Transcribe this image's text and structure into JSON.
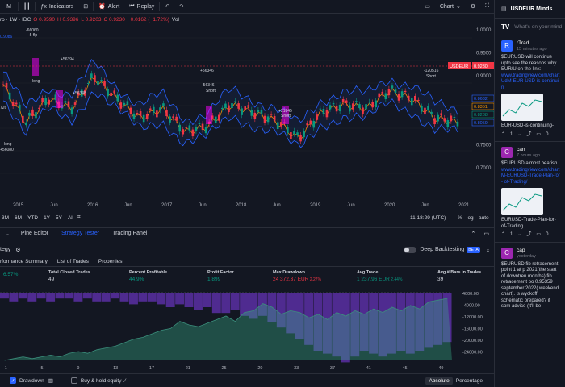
{
  "toolbar": {
    "interval_label": "M",
    "indicators_label": "Indicators",
    "alert_label": "Alert",
    "replay_label": "Replay",
    "chart_label": "Chart"
  },
  "legend": {
    "symbol": "ro · 1W · IDC",
    "open": "O 0.9590",
    "high": "H 0.9396",
    "low": "L 0.9203",
    "close": "C 0.9230",
    "change": "−0.0162 (−1.72%)",
    "vol": "Vol"
  },
  "price_axis": {
    "ticks": [
      "1.0000",
      "0.9500",
      "0.9000",
      "0.8500",
      "0.8000",
      "0.7500",
      "0.7000"
    ],
    "symbol_tag": "USDEUR",
    "last_price": "0.9230",
    "bb_labels": [
      "0.8632",
      "0.8351",
      "0.8288",
      "0.8059"
    ]
  },
  "annotations": {
    "top_left": "0.9086",
    "a1": "-66060",
    "a2": "-5 flp",
    "a3": "+56394",
    "a4": "+56346",
    "a5": "+56348",
    "a6": "-56346",
    "a7": "Short",
    "a8": "+21645",
    "a9": "Short",
    "a10": "-120516",
    "a11": "Short",
    "a12": "+120516",
    "a13": "long",
    "a14": "+56080",
    "a15": "long",
    "a16": "726"
  },
  "time_axis": {
    "labels": [
      "2015",
      "Jun",
      "2016",
      "Jun",
      "2017",
      "Jun",
      "2018",
      "Jun",
      "2019",
      "Jun",
      "2020",
      "Jun",
      "2021"
    ],
    "clock": "11:18:29 (UTC)",
    "pct": "%",
    "log": "log",
    "auto": "auto"
  },
  "ranges": [
    "3M",
    "6M",
    "YTD",
    "1Y",
    "5Y",
    "All"
  ],
  "bottom_tabs": {
    "pine": "Pine Editor",
    "tester": "Strategy Tester",
    "panel": "Trading Panel"
  },
  "strategy": {
    "label": "tegy",
    "deep": "Deep Backtesting",
    "beta": "BETA"
  },
  "report_tabs": [
    "rformance Summary",
    "List of Trades",
    "Properties"
  ],
  "stats": [
    {
      "label": "",
      "value": "6.57%",
      "color": "#089981"
    },
    {
      "label": "Total Closed Trades",
      "value": "49",
      "color": "#d1d4dc"
    },
    {
      "label": "Percent Profitable",
      "value": "44.9%",
      "color": "#089981"
    },
    {
      "label": "Profit Factor",
      "value": "1.899",
      "color": "#089981"
    },
    {
      "label": "Max Drawdown",
      "value": "24 372.37 EUR",
      "extra": "2.27%",
      "color": "#f23645"
    },
    {
      "label": "Avg Trade",
      "value": "1 237.96 EUR",
      "extra": "2.44%",
      "color": "#089981"
    },
    {
      "label": "Avg # Bars in Trades",
      "value": "39",
      "color": "#d1d4dc"
    }
  ],
  "equity_axis": [
    "4000.00",
    "-4000.00",
    "-12000.00",
    "-16000.00",
    "-20000.00",
    "-24000.00"
  ],
  "equity_x": [
    "1",
    "5",
    "9",
    "13",
    "17",
    "21",
    "25",
    "29",
    "33",
    "37",
    "41",
    "45",
    "49"
  ],
  "chart_data": {
    "type": "area",
    "equity": [
      0,
      1,
      2,
      1,
      2,
      3,
      2,
      4,
      5,
      4,
      6,
      7,
      8,
      10,
      12,
      13,
      15,
      17,
      18,
      22,
      20,
      19,
      21,
      23,
      25,
      22,
      27,
      28,
      32,
      30,
      26,
      28,
      27,
      24,
      26,
      23,
      27,
      25,
      28,
      26,
      29,
      27,
      30,
      28,
      31,
      29,
      33,
      34,
      35
    ],
    "drawdown": [
      2,
      3,
      2,
      3,
      2,
      3,
      2,
      2,
      3,
      2,
      3,
      3,
      2,
      3,
      4,
      3,
      3,
      4,
      5,
      4,
      5,
      6,
      5,
      7,
      7,
      6,
      8,
      9,
      8,
      10,
      12,
      14,
      16,
      18,
      20,
      21,
      22,
      24,
      22,
      20,
      21,
      22,
      21,
      20,
      21,
      20,
      19,
      18,
      17
    ],
    "ylim": [
      -24000,
      4000
    ]
  },
  "bottom": {
    "drawdown": "Drawdown",
    "buyhold": "Buy & hold equity",
    "absolute": "Absolute",
    "percentage": "Percentage"
  },
  "side": {
    "title": "USDEUR Minds",
    "placeholder": "What's on your mind",
    "posts": [
      {
        "avatar": "R",
        "color": "#2962ff",
        "name": "rTrad",
        "time": "15 minutes ago",
        "text": "$EURUSD will continue upto see the reasons why EUR/U on the link:",
        "link": "www.tradingview.com/chart UdM-EUR-USD-is-continuin",
        "card": "EUR-USD-is-continuing-",
        "likes": "1",
        "comments": "0"
      },
      {
        "avatar": "C",
        "color": "#9c27b0",
        "name": "can",
        "time": "7 hours ago",
        "text": "$EURUSD almost bearish",
        "link": "www.tradingview.com/chart M-EURUSD-Trade-Plan-for- of-Trading/",
        "card": "EURUSD-Trade-Plan-for- of-Trading",
        "likes": "1",
        "comments": "0"
      },
      {
        "avatar": "C",
        "color": "#9c27b0",
        "name": "cap",
        "time": "yesterday",
        "text": "$EURUSD fib retracement point 1 at p 2021(the start of downtren months) fib retracement po 0.95359 september 2022( weekend chart). is wyckoff schematic prepared? if som advice (it'll be"
      }
    ]
  }
}
